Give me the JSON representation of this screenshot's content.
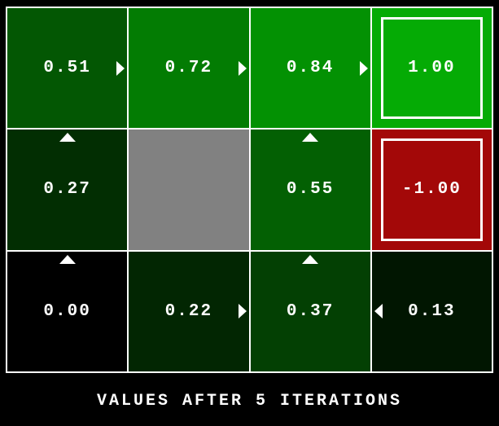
{
  "title": "VALUES AFTER 5 ITERATIONS",
  "colors": {
    "background": "#000000",
    "grid_line": "#FFFFFF",
    "text": "#FFFFFF",
    "wall": "#818181",
    "terminal_positive": "#05AB05",
    "terminal_negative": "#A30808"
  },
  "grid": {
    "rows": 3,
    "cols": 4,
    "cells": [
      {
        "row": 0,
        "col": 0,
        "value": "0.51",
        "bg": "#035703",
        "arrow": "east",
        "terminal": false,
        "wall": false
      },
      {
        "row": 0,
        "col": 1,
        "value": "0.72",
        "bg": "#037C03",
        "arrow": "east",
        "terminal": false,
        "wall": false
      },
      {
        "row": 0,
        "col": 2,
        "value": "0.84",
        "bg": "#039103",
        "arrow": "east",
        "terminal": false,
        "wall": false
      },
      {
        "row": 0,
        "col": 3,
        "value": "1.00",
        "bg": "#05AB05",
        "arrow": null,
        "terminal": true,
        "wall": false
      },
      {
        "row": 1,
        "col": 0,
        "value": "0.27",
        "bg": "#022E02",
        "arrow": "north",
        "terminal": false,
        "wall": false
      },
      {
        "row": 1,
        "col": 1,
        "value": null,
        "bg": "#818181",
        "arrow": null,
        "terminal": false,
        "wall": true
      },
      {
        "row": 1,
        "col": 2,
        "value": "0.55",
        "bg": "#036003",
        "arrow": "north",
        "terminal": false,
        "wall": false
      },
      {
        "row": 1,
        "col": 3,
        "value": "-1.00",
        "bg": "#A30808",
        "arrow": null,
        "terminal": true,
        "wall": false
      },
      {
        "row": 2,
        "col": 0,
        "value": "0.00",
        "bg": "#000000",
        "arrow": "north",
        "terminal": false,
        "wall": false
      },
      {
        "row": 2,
        "col": 1,
        "value": "0.22",
        "bg": "#022602",
        "arrow": "east",
        "terminal": false,
        "wall": false
      },
      {
        "row": 2,
        "col": 2,
        "value": "0.37",
        "bg": "#034003",
        "arrow": "north",
        "terminal": false,
        "wall": false
      },
      {
        "row": 2,
        "col": 3,
        "value": "0.13",
        "bg": "#011601",
        "arrow": "west",
        "terminal": false,
        "wall": false
      }
    ]
  }
}
